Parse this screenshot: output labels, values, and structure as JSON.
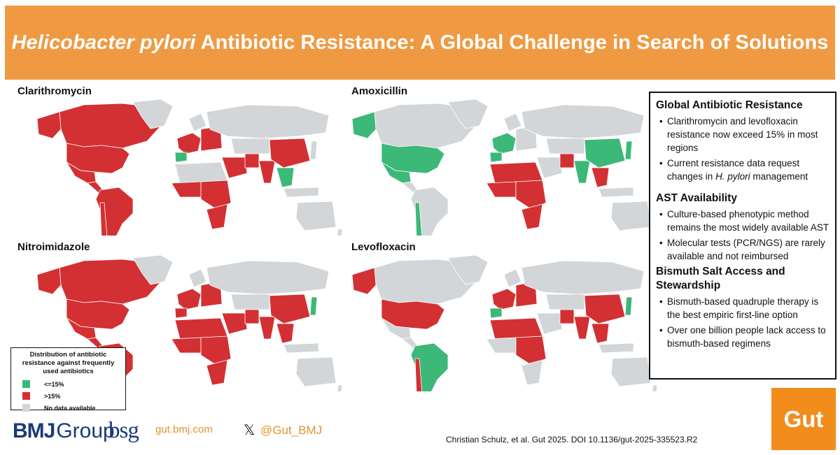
{
  "banner": {
    "title_italic": "Helicobacter pylori",
    "title_rest": " Antibiotic Resistance: A Global Challenge in Search of Solutions",
    "color": "#ef9a42"
  },
  "maps": [
    {
      "name": "Clarithromycin"
    },
    {
      "name": "Amoxicillin"
    },
    {
      "name": "Nitroimidazole"
    },
    {
      "name": "Levofloxacin"
    }
  ],
  "legend": {
    "title": "Distribution of antibiotic resistance against frequently used antibiotics",
    "items": [
      {
        "label": "<=15%",
        "color": "#3cb878"
      },
      {
        "label": ">15%",
        "color": "#d33033"
      },
      {
        "label": "No data available",
        "color": "#d3d6d9"
      }
    ]
  },
  "sidebar": {
    "sections": [
      {
        "heading": "Global Antibiotic Resistance",
        "bullets": [
          "Clarithromycin and levofloxacin resistance now exceed 15% in most regions",
          "Current resistance data request changes in H. pylori management"
        ]
      },
      {
        "heading": "AST Availability",
        "bullets": [
          "Culture-based phenotypic method remains the most widely available AST",
          "Molecular tests (PCR/NGS) are rarely available and not reimbursed"
        ]
      },
      {
        "heading": "Bismuth Salt Access and Stewardship",
        "bullets": [
          "Bismuth-based quadruple therapy is the best empiric first-line option",
          "Over one billion people lack access to bismuth-based regimens"
        ]
      }
    ]
  },
  "footer": {
    "bmj_bold": "BMJ",
    "bmj_group": "Group",
    "bsg": "bsg",
    "site": "gut.bmj.com",
    "x_icon": "x-logo-icon",
    "handle": "@Gut_BMJ",
    "citation": "Christian Schulz, et al. Gut 2025. DOI 10.1136/gut-2025-335523.R2",
    "journal": "Gut"
  },
  "colors": {
    "resistant": "#d33033",
    "low": "#3cb878",
    "nodata": "#d3d6d9"
  }
}
